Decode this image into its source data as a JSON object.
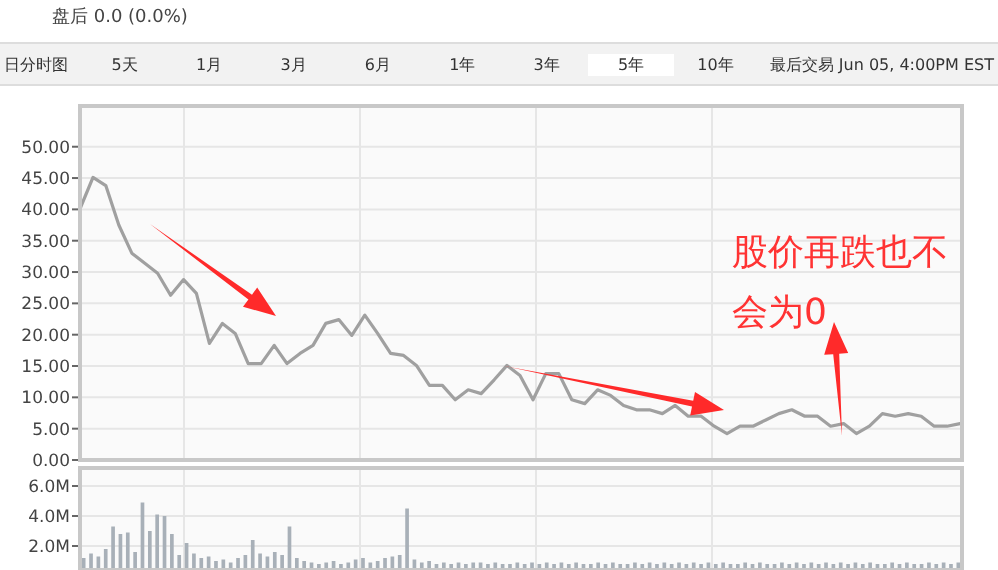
{
  "chart_data": [
    {
      "type": "line",
      "annotations": [
        "盘后 0.0 (0.0%)",
        "日分时图",
        "5天",
        "1月",
        "3月",
        "6月",
        "1年",
        "3年",
        "5年",
        "10年",
        "最后交易 Jun 05, 4:00PM EST",
        "股价再跌也不会为0"
      ],
      "categories": [
        null,
        null,
        null,
        null,
        null,
        null,
        null,
        null,
        null,
        null,
        null,
        null,
        null,
        null,
        null,
        null,
        null,
        null,
        null,
        null,
        null,
        null,
        null,
        null,
        null,
        null,
        null,
        null,
        null,
        null,
        null,
        null,
        null,
        null,
        null,
        null,
        null,
        null,
        null,
        null,
        null,
        null,
        null,
        null,
        null,
        null,
        null,
        null,
        null,
        null,
        null,
        null,
        null,
        null,
        null,
        null,
        null,
        null,
        null,
        null,
        null,
        null,
        null,
        null,
        null,
        null,
        null,
        null,
        null
      ],
      "values": [
        40.1,
        45.1,
        43.8,
        37.5,
        33,
        31.4,
        29.8,
        26.3,
        28.8,
        26.6,
        18.6,
        21.8,
        20.2,
        15.4,
        15.4,
        18.3,
        15.4,
        17,
        18.3,
        21.8,
        22.4,
        19.9,
        23.1,
        20.2,
        17,
        16.7,
        15.1,
        11.9,
        11.9,
        9.6,
        11.2,
        10.6,
        12.8,
        15.1,
        13.5,
        9.6,
        13.8,
        13.8,
        9.6,
        9,
        11.2,
        10.3,
        8.7,
        8,
        8,
        7.4,
        8.7,
        7,
        7,
        5.4,
        4.2,
        5.4,
        5.4,
        6.4,
        7.4,
        8,
        7,
        7,
        5.4,
        5.8,
        4.2,
        5.4,
        7.4,
        7,
        7.4,
        7,
        5.4,
        5.4,
        5.8
      ],
      "color": "#a0a0a0",
      "ylim": [
        0,
        56.5
      ],
      "yticks": [
        {
          "value": 0,
          "label": "0.00"
        },
        {
          "value": 5,
          "label": "5.00"
        },
        {
          "value": 10,
          "label": "10.00"
        },
        {
          "value": 15,
          "label": "15.00"
        },
        {
          "value": 20,
          "label": "20.00"
        },
        {
          "value": 25,
          "label": "25.00"
        },
        {
          "value": 30,
          "label": "30.00"
        },
        {
          "value": 35,
          "label": "35.00"
        },
        {
          "value": 40,
          "label": "40.00"
        },
        {
          "value": 45,
          "label": "45.00"
        },
        {
          "value": 50,
          "label": "50.00"
        }
      ],
      "grid": true,
      "tick_labels": "y"
    },
    {
      "type": "bar",
      "categories": [
        null,
        null,
        null,
        null,
        null,
        null,
        null,
        null,
        null,
        null,
        null,
        null,
        null,
        null,
        null,
        null,
        null,
        null,
        null,
        null,
        null,
        null,
        null,
        null,
        null,
        null,
        null,
        null,
        null,
        null,
        null,
        null,
        null,
        null,
        null,
        null,
        null,
        null,
        null,
        null,
        null,
        null,
        null,
        null,
        null,
        null,
        null,
        null,
        null,
        null,
        null,
        null,
        null,
        null,
        null,
        null,
        null,
        null,
        null,
        null,
        null,
        null,
        null,
        null,
        null,
        null,
        null,
        null,
        null,
        null,
        null,
        null,
        null,
        null,
        null,
        null,
        null,
        null,
        null,
        null,
        null,
        null,
        null,
        null,
        null,
        null,
        null,
        null,
        null,
        null,
        null,
        null,
        null,
        null,
        null,
        null,
        null,
        null,
        null,
        null,
        null,
        null,
        null,
        null,
        null,
        null,
        null,
        null,
        null,
        null,
        null,
        null,
        null,
        null,
        null,
        null,
        null,
        null,
        null,
        null
      ],
      "values": [
        1.2,
        1.5,
        1.3,
        1.8,
        3.3,
        2.8,
        2.9,
        1.6,
        4.9,
        3.0,
        4.1,
        4.0,
        2.8,
        1.4,
        2.2,
        1.5,
        1.2,
        1.3,
        1.0,
        1.1,
        0.9,
        1.2,
        1.4,
        2.4,
        1.5,
        1.3,
        1.6,
        1.4,
        3.3,
        1.2,
        1.0,
        0.9,
        0.8,
        0.9,
        1.0,
        0.8,
        0.9,
        1.1,
        1.2,
        0.9,
        1.0,
        1.2,
        1.3,
        1.4,
        4.5,
        1.1,
        0.9,
        1.0,
        0.8,
        0.9,
        0.8,
        0.9,
        0.8,
        0.9,
        0.9,
        0.8,
        0.9,
        0.8,
        0.8,
        0.9,
        0.8,
        0.9,
        0.8,
        0.9,
        0.8,
        0.9,
        0.8,
        0.9,
        0.8,
        0.8,
        0.9,
        0.8,
        0.9,
        0.8,
        0.8,
        0.9,
        0.8,
        0.9,
        0.8,
        0.9,
        0.8,
        0.9,
        0.8,
        0.9,
        0.8,
        0.9,
        0.8,
        0.9,
        0.8,
        0.8,
        0.9,
        0.8,
        0.9,
        0.8,
        0.8,
        0.9,
        0.8,
        0.9,
        0.8,
        0.9,
        0.8,
        0.9,
        0.8,
        0.9,
        0.8,
        0.9,
        0.8,
        0.9,
        0.8,
        0.8,
        0.9,
        0.8,
        0.9,
        0.8,
        0.8,
        0.9,
        0.8,
        0.9,
        0.8,
        0.9
      ],
      "color": "#a8b0b8",
      "ylim": [
        0.4,
        7.2
      ],
      "yticks": [
        {
          "value": 2,
          "label": "2.0M"
        },
        {
          "value": 4,
          "label": "4.0M"
        },
        {
          "value": 6,
          "label": "6.0M"
        }
      ],
      "grid": true,
      "tick_labels": "y"
    }
  ]
}
